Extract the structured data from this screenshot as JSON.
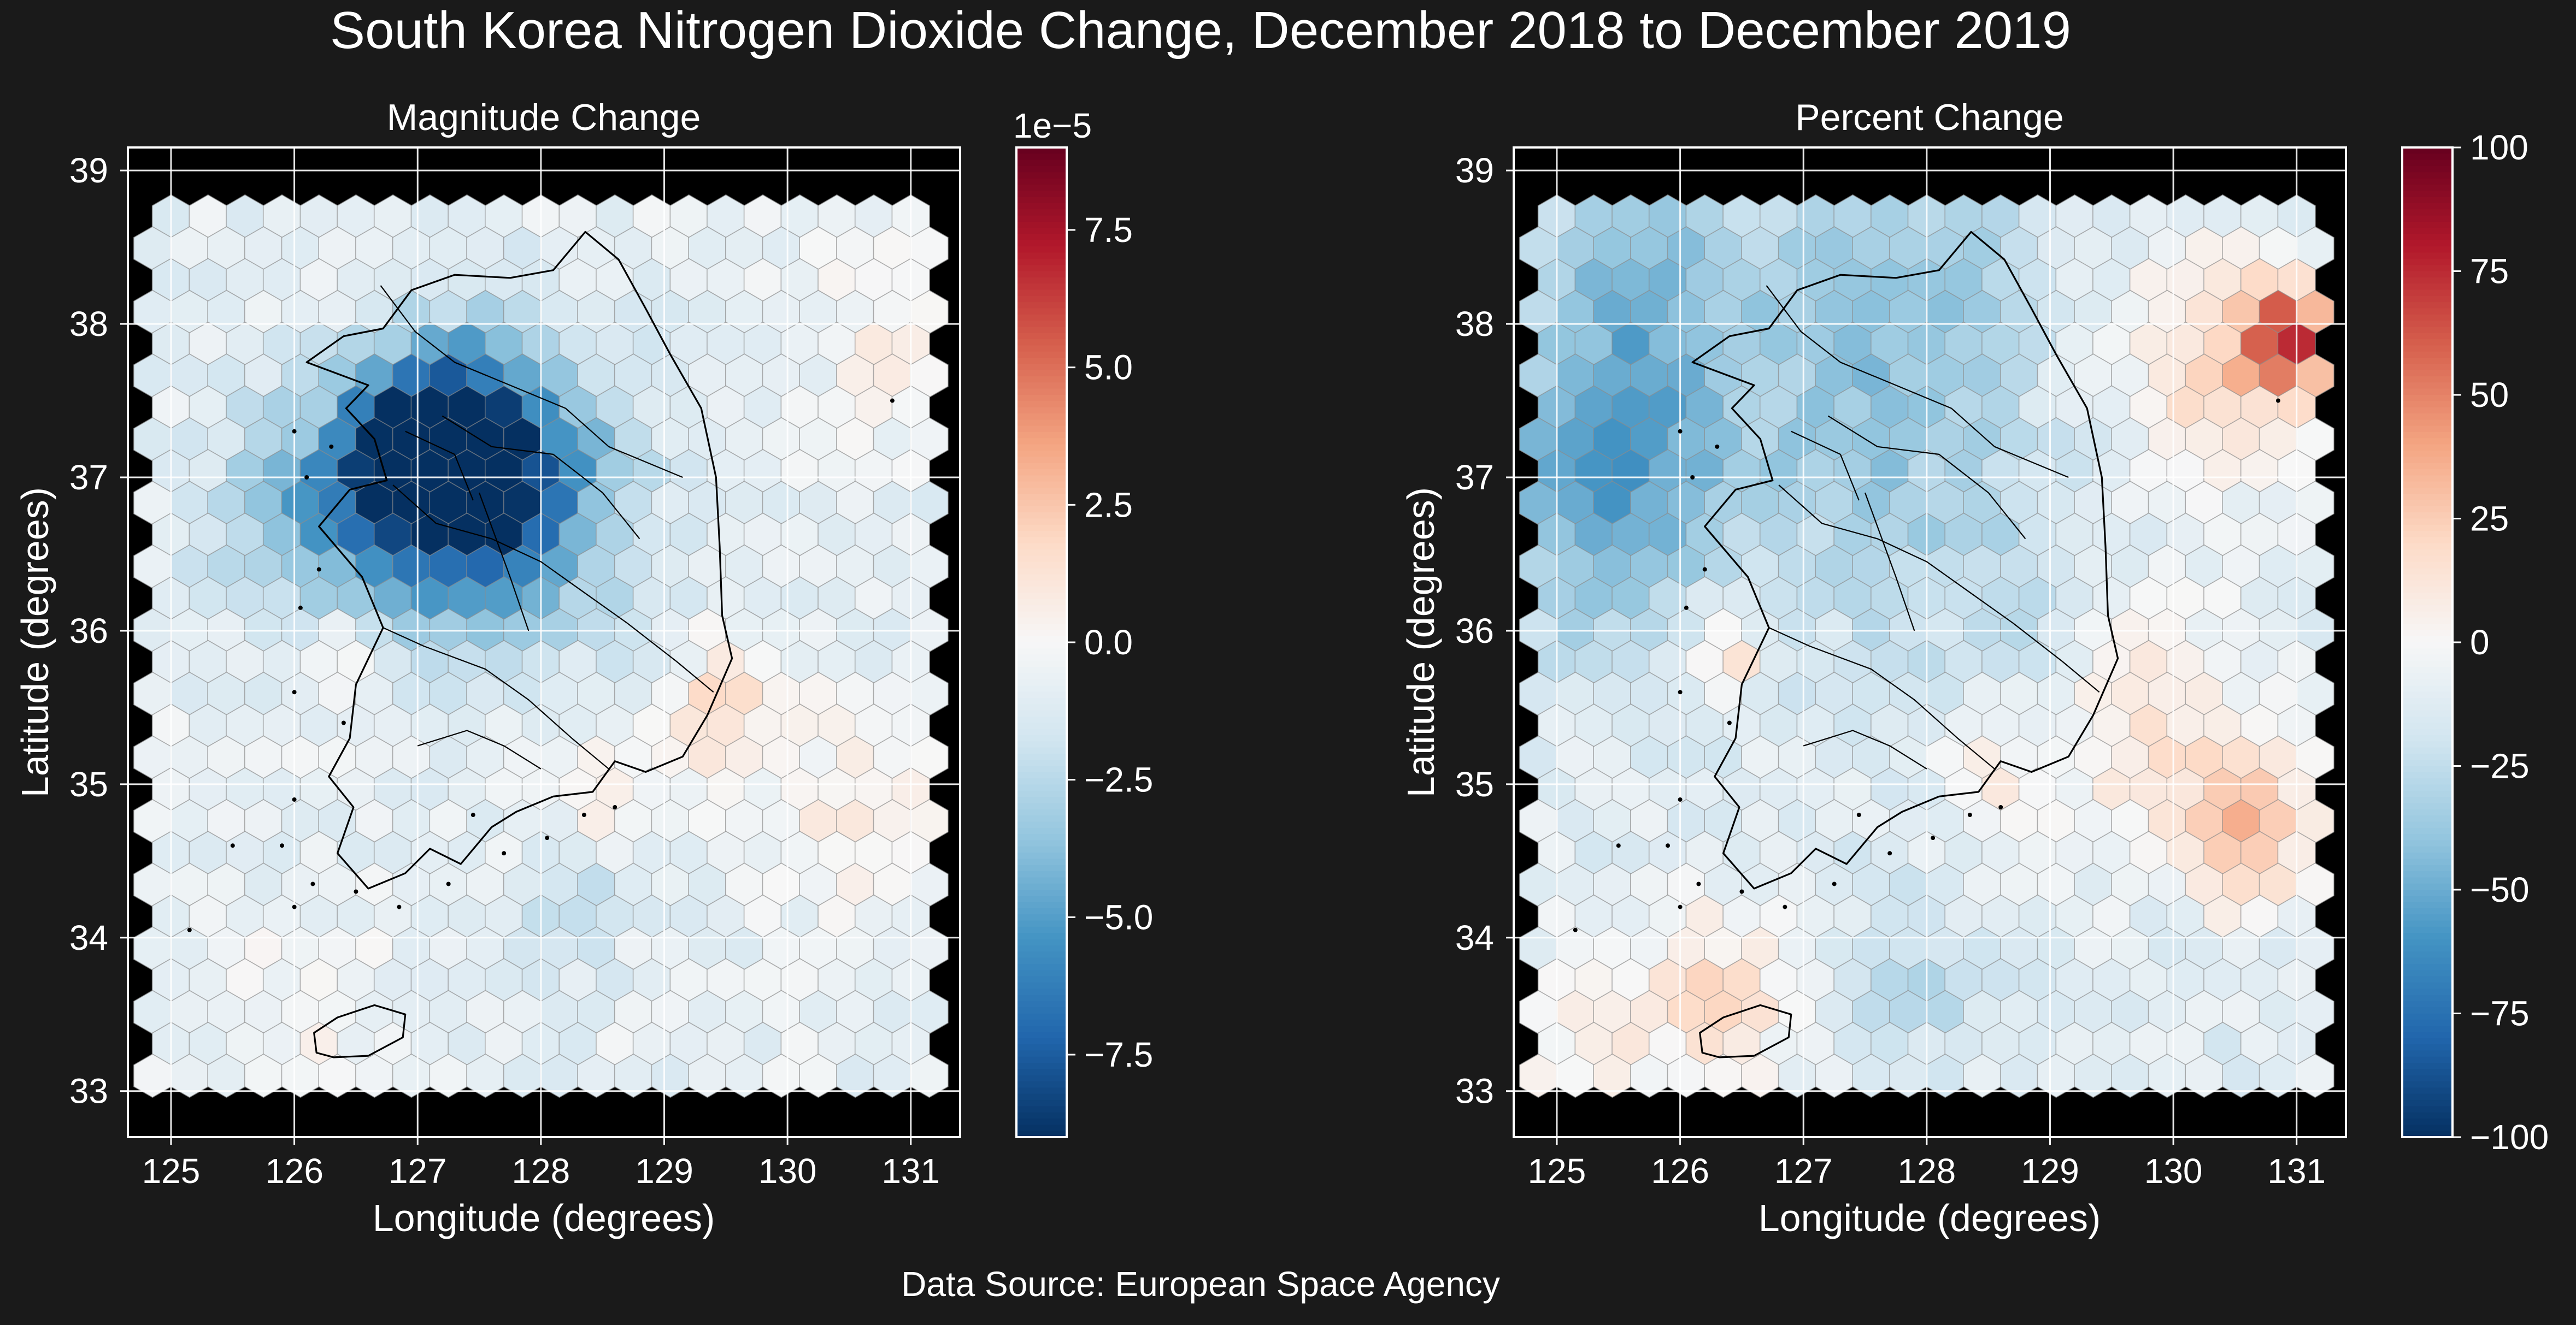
{
  "figure": {
    "title": "South Korea Nitrogen Dioxide Change, December 2018 to December 2019",
    "footer": "Data Source: European Space Agency",
    "background": "#1a1a1a",
    "plot_background": "#000000",
    "colormap": "RdBu_r",
    "colormap_stops": [
      "#053061",
      "#2166ac",
      "#4393c3",
      "#92c5de",
      "#d1e5f0",
      "#f7f7f7",
      "#fddbc7",
      "#f4a582",
      "#d6604d",
      "#b2182b",
      "#67001f"
    ]
  },
  "chart_data": [
    {
      "type": "heatmap",
      "subtype": "hexbin-map",
      "title": "Magnitude Change",
      "xlabel": "Longitude (degrees)",
      "ylabel": "Latitude (degrees)",
      "xlim": [
        124.65,
        131.4
      ],
      "ylim": [
        32.7,
        39.15
      ],
      "xticks": [
        "125",
        "126",
        "127",
        "128",
        "129",
        "130",
        "131"
      ],
      "yticks": [
        "33",
        "34",
        "35",
        "36",
        "37",
        "38",
        "39"
      ],
      "grid": true,
      "hex_grid": {
        "lon_range": [
          125.0,
          131.0
        ],
        "lat_range": [
          33.1,
          38.7
        ],
        "columns": 21,
        "rows": 28
      },
      "colorbar": {
        "range": [
          -9e-05,
          9e-05
        ],
        "ticks": [
          "−7.5",
          "−5.0",
          "−2.5",
          "0.0",
          "2.5",
          "5.0",
          "7.5"
        ],
        "tick_values": [
          -7.5,
          -5.0,
          -2.5,
          0.0,
          2.5,
          5.0,
          7.5
        ],
        "offset_label": "1e−5",
        "unit_scale": 1e-05
      },
      "hotspots": [
        {
          "lon": 127.5,
          "lat": 37.0,
          "value": -8.2e-05,
          "spread": 0.55
        },
        {
          "lon": 127.05,
          "lat": 37.2,
          "value": -6.5e-05,
          "spread": 0.4
        },
        {
          "lon": 126.6,
          "lat": 36.8,
          "value": -3e-05,
          "spread": 0.55
        },
        {
          "lon": 125.9,
          "lat": 36.75,
          "value": -2.2e-05,
          "spread": 0.5
        },
        {
          "lon": 128.2,
          "lat": 36.8,
          "value": -1.8e-05,
          "spread": 0.7
        },
        {
          "lon": 126.4,
          "lat": 35.9,
          "value": 1.8e-05,
          "spread": 0.2
        },
        {
          "lon": 129.5,
          "lat": 35.5,
          "value": 2.2e-05,
          "spread": 0.3
        },
        {
          "lon": 128.5,
          "lat": 35.0,
          "value": 1.3e-05,
          "spread": 0.25
        },
        {
          "lon": 130.5,
          "lat": 34.8,
          "value": 1.4e-05,
          "spread": 0.45
        },
        {
          "lon": 130.8,
          "lat": 37.9,
          "value": 1e-05,
          "spread": 0.4
        },
        {
          "lon": 126.2,
          "lat": 33.6,
          "value": 8e-06,
          "spread": 0.4
        },
        {
          "lon": 128.3,
          "lat": 34.1,
          "value": -2e-05,
          "spread": 0.25
        }
      ],
      "baseline_value": -8e-06
    },
    {
      "type": "heatmap",
      "subtype": "hexbin-map",
      "title": "Percent Change",
      "xlabel": "Longitude (degrees)",
      "ylabel": "Latitude (degrees)",
      "xlim": [
        124.65,
        131.4
      ],
      "ylim": [
        32.7,
        39.15
      ],
      "xticks": [
        "125",
        "126",
        "127",
        "128",
        "129",
        "130",
        "131"
      ],
      "yticks": [
        "33",
        "34",
        "35",
        "36",
        "37",
        "38",
        "39"
      ],
      "grid": true,
      "hex_grid": {
        "lon_range": [
          125.0,
          131.0
        ],
        "lat_range": [
          33.1,
          38.7
        ],
        "columns": 21,
        "rows": 28
      },
      "colorbar": {
        "range": [
          -100,
          100
        ],
        "ticks": [
          "−100",
          "−75",
          "−50",
          "−25",
          "0",
          "25",
          "50",
          "75",
          "100"
        ],
        "tick_values": [
          -100,
          -75,
          -50,
          -25,
          0,
          25,
          50,
          75,
          100
        ],
        "offset_label": "",
        "unit_scale": 1
      },
      "hotspots": [
        {
          "lon": 125.4,
          "lat": 36.9,
          "value": -45,
          "spread": 0.65
        },
        {
          "lon": 125.7,
          "lat": 38.2,
          "value": -30,
          "spread": 0.7
        },
        {
          "lon": 127.8,
          "lat": 38.4,
          "value": -25,
          "spread": 0.8
        },
        {
          "lon": 127.5,
          "lat": 37.0,
          "value": -22,
          "spread": 0.8
        },
        {
          "lon": 128.8,
          "lat": 36.3,
          "value": -15,
          "spread": 0.6
        },
        {
          "lon": 130.9,
          "lat": 37.9,
          "value": 75,
          "spread": 0.25
        },
        {
          "lon": 130.3,
          "lat": 37.7,
          "value": 25,
          "spread": 0.55
        },
        {
          "lon": 130.6,
          "lat": 34.7,
          "value": 42,
          "spread": 0.35
        },
        {
          "lon": 129.8,
          "lat": 35.4,
          "value": 22,
          "spread": 0.6
        },
        {
          "lon": 126.4,
          "lat": 35.9,
          "value": 30,
          "spread": 0.2
        },
        {
          "lon": 126.3,
          "lat": 33.6,
          "value": 25,
          "spread": 0.45
        },
        {
          "lon": 125.2,
          "lat": 33.4,
          "value": 15,
          "spread": 0.4
        },
        {
          "lon": 128.5,
          "lat": 35.0,
          "value": 14,
          "spread": 0.3
        },
        {
          "lon": 127.8,
          "lat": 33.7,
          "value": -20,
          "spread": 0.4
        }
      ],
      "baseline_value": -12
    }
  ]
}
